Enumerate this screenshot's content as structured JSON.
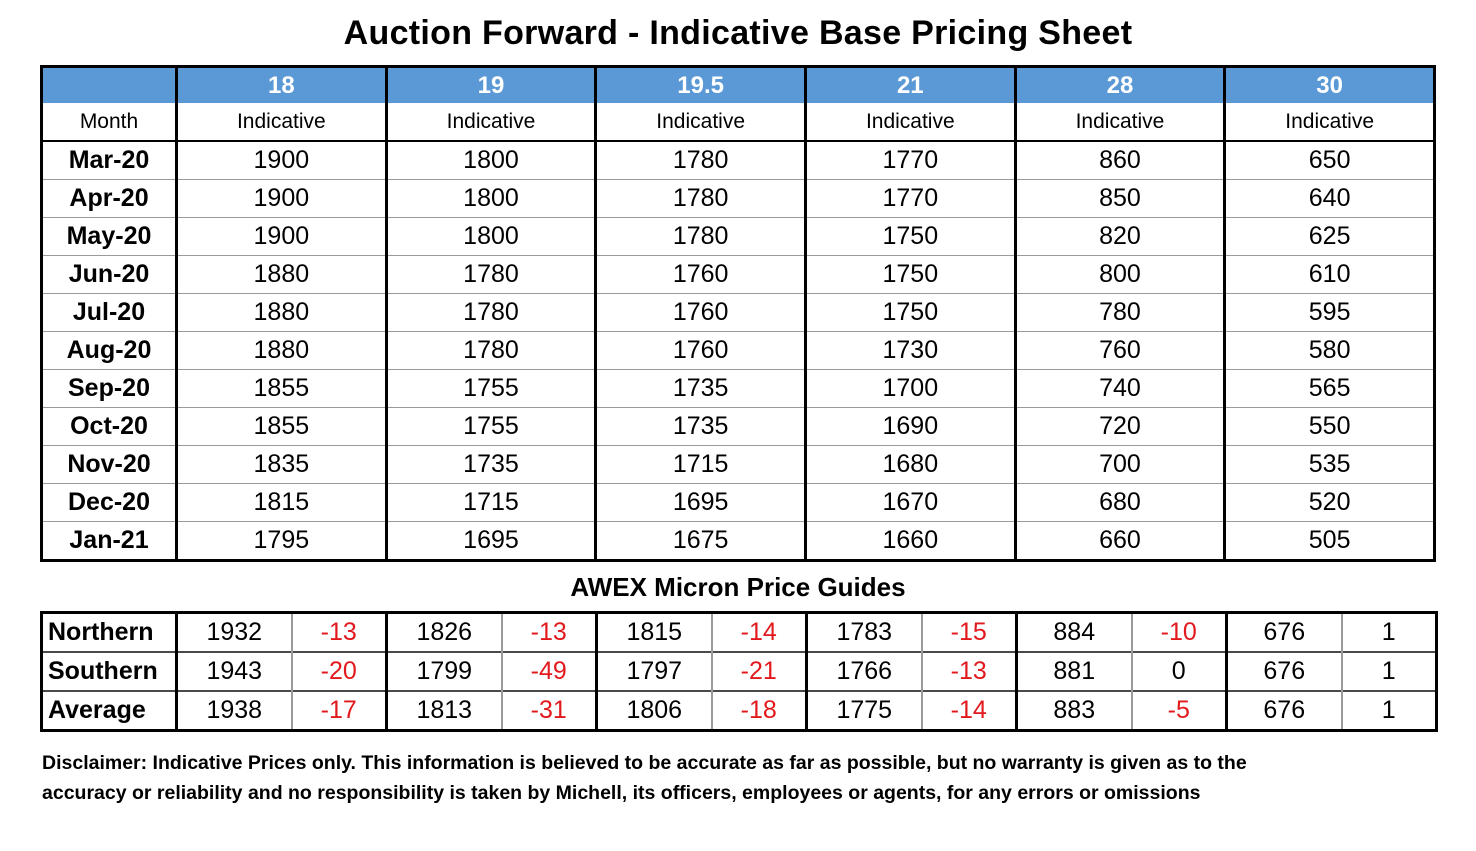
{
  "title": "Auction Forward - Indicative Base Pricing Sheet",
  "colors": {
    "header_blue": "#5B99D6",
    "negative_red": "#E2191C"
  },
  "main_table": {
    "month_header": "Month",
    "sub_header": "Indicative",
    "microns": [
      "18",
      "19",
      "19.5",
      "21",
      "28",
      "30"
    ],
    "rows": [
      {
        "month": "Mar-20",
        "values": [
          1900,
          1800,
          1780,
          1770,
          860,
          650
        ]
      },
      {
        "month": "Apr-20",
        "values": [
          1900,
          1800,
          1780,
          1770,
          850,
          640
        ]
      },
      {
        "month": "May-20",
        "values": [
          1900,
          1800,
          1780,
          1750,
          820,
          625
        ]
      },
      {
        "month": "Jun-20",
        "values": [
          1880,
          1780,
          1760,
          1750,
          800,
          610
        ]
      },
      {
        "month": "Jul-20",
        "values": [
          1880,
          1780,
          1760,
          1750,
          780,
          595
        ]
      },
      {
        "month": "Aug-20",
        "values": [
          1880,
          1780,
          1760,
          1730,
          760,
          580
        ]
      },
      {
        "month": "Sep-20",
        "values": [
          1855,
          1755,
          1735,
          1700,
          740,
          565
        ]
      },
      {
        "month": "Oct-20",
        "values": [
          1855,
          1755,
          1735,
          1690,
          720,
          550
        ]
      },
      {
        "month": "Nov-20",
        "values": [
          1835,
          1735,
          1715,
          1680,
          700,
          535
        ]
      },
      {
        "month": "Dec-20",
        "values": [
          1815,
          1715,
          1695,
          1670,
          680,
          520
        ]
      },
      {
        "month": "Jan-21",
        "values": [
          1795,
          1695,
          1675,
          1660,
          660,
          505
        ]
      }
    ]
  },
  "awex": {
    "title": "AWEX Micron Price Guides",
    "rows": [
      {
        "label": "Northern",
        "pairs": [
          [
            1932,
            -13
          ],
          [
            1826,
            -13
          ],
          [
            1815,
            -14
          ],
          [
            1783,
            -15
          ],
          [
            884,
            -10
          ],
          [
            676,
            1
          ]
        ]
      },
      {
        "label": "Southern",
        "pairs": [
          [
            1943,
            -20
          ],
          [
            1799,
            -49
          ],
          [
            1797,
            -21
          ],
          [
            1766,
            -13
          ],
          [
            881,
            0
          ],
          [
            676,
            1
          ]
        ]
      },
      {
        "label": "Average",
        "pairs": [
          [
            1938,
            -17
          ],
          [
            1813,
            -31
          ],
          [
            1806,
            -18
          ],
          [
            1775,
            -14
          ],
          [
            883,
            -5
          ],
          [
            676,
            1
          ]
        ]
      }
    ]
  },
  "disclaimer": {
    "line1": "Disclaimer: Indicative Prices only. This information is believed to be accurate as far as possible, but no warranty is given as to the",
    "line2": "accuracy or reliability and no responsibility is taken by Michell, its officers, employees or agents, for any errors or omissions"
  }
}
